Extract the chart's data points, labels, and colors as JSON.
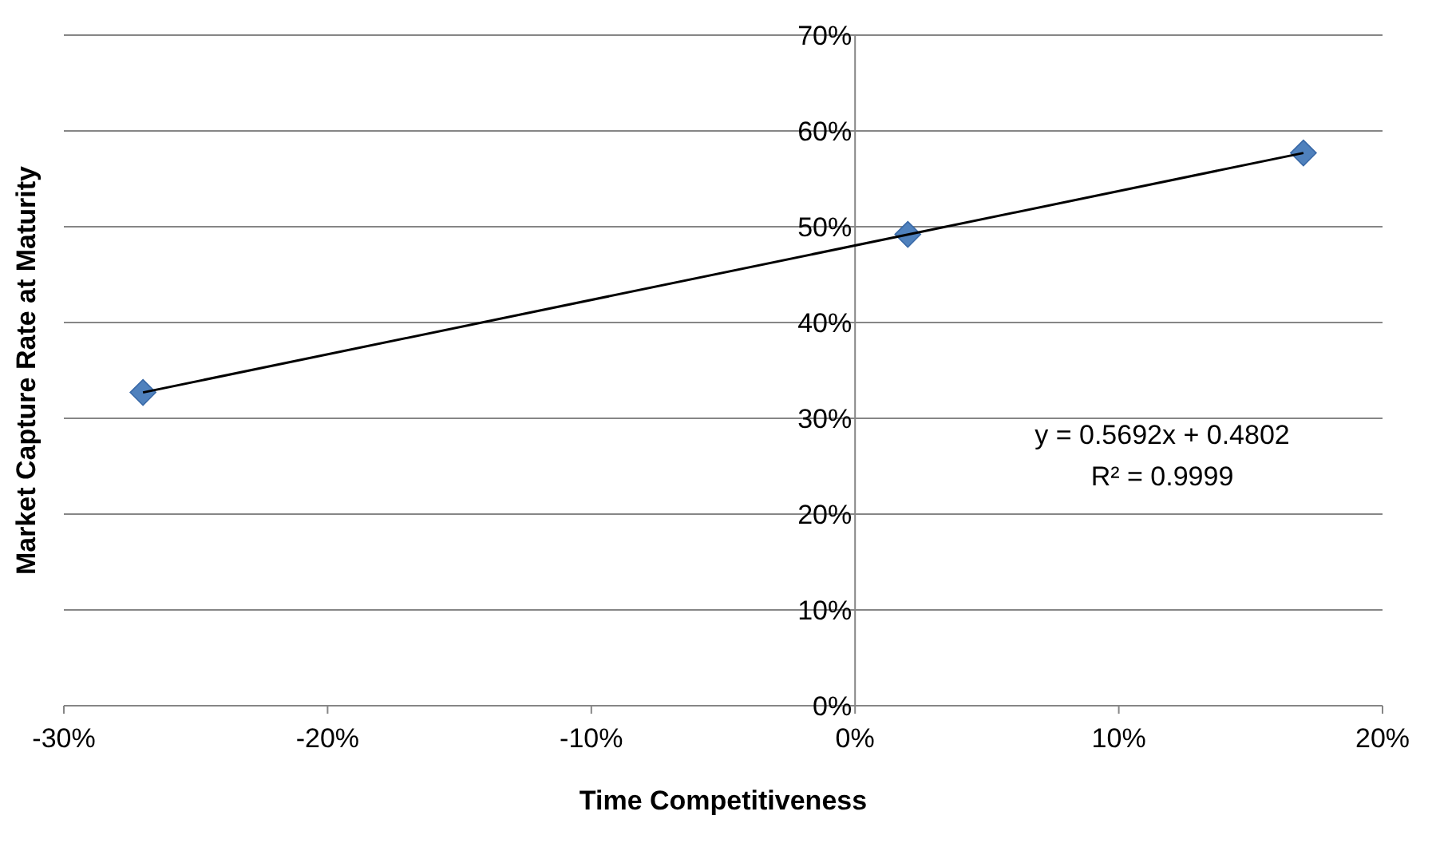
{
  "chart_data": {
    "type": "scatter",
    "xlabel": "Time Competitiveness",
    "ylabel": "Market Capture Rate at Maturity",
    "series": [
      {
        "color": "#4f81bd",
        "x": [
          -0.27,
          0.02,
          0.17
        ],
        "values": [
          0.327,
          0.492,
          0.577
        ],
        "marker": "diamond"
      },
      {
        "type": "line",
        "color": "#000000",
        "x": [
          -0.27,
          0.17
        ],
        "values": [
          0.327,
          0.577
        ],
        "marker": "none",
        "line_style": "solid"
      }
    ],
    "xlim": [
      -0.3,
      0.2
    ],
    "xticks": [
      {
        "value": -0.3,
        "label": "-30%"
      },
      {
        "value": -0.2,
        "label": "-20%"
      },
      {
        "value": -0.1,
        "label": "-10%"
      },
      {
        "value": 0,
        "label": "0%"
      },
      {
        "value": 0.1,
        "label": "10%"
      },
      {
        "value": 0.2,
        "label": "20%"
      }
    ],
    "ylim": [
      0,
      0.7
    ],
    "yticks": [
      {
        "value": 0,
        "label": "0%"
      },
      {
        "value": 0.1,
        "label": "10%"
      },
      {
        "value": 0.2,
        "label": "20%"
      },
      {
        "value": 0.3,
        "label": "30%"
      },
      {
        "value": 0.4,
        "label": "40%"
      },
      {
        "value": 0.5,
        "label": "50%"
      },
      {
        "value": 0.6,
        "label": "60%"
      },
      {
        "value": 0.7,
        "label": "70%"
      }
    ],
    "grid": "y",
    "annotations": [
      "y = 0.5692x + 0.4802",
      "R² = 0.9999"
    ]
  }
}
